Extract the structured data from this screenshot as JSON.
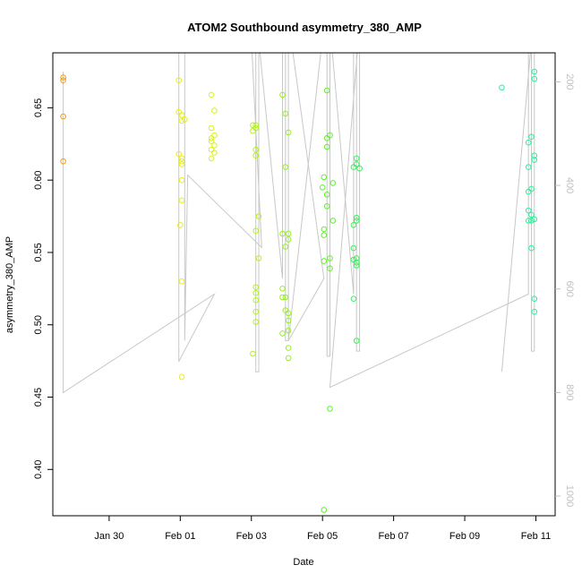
{
  "chart_data": {
    "type": "scatter",
    "title": "ATOM2 Southbound asymmetry_380_AMP",
    "xlabel": "Date",
    "ylabel": "asymmetry_380_AMP",
    "xlim": [
      "2024-01-28T10:00",
      "2024-02-11T13:00"
    ],
    "ylim": [
      0.368,
      0.688
    ],
    "x_ticks": [
      {
        "date": "2024-01-30T00:00",
        "label": "Jan 30"
      },
      {
        "date": "2024-02-01T00:00",
        "label": "Feb 01"
      },
      {
        "date": "2024-02-03T00:00",
        "label": "Feb 03"
      },
      {
        "date": "2024-02-05T00:00",
        "label": "Feb 05"
      },
      {
        "date": "2024-02-07T00:00",
        "label": "Feb 07"
      },
      {
        "date": "2024-02-09T00:00",
        "label": "Feb 09"
      },
      {
        "date": "2024-02-11T00:00",
        "label": "Feb 11"
      }
    ],
    "y_ticks": [
      0.4,
      0.45,
      0.5,
      0.55,
      0.6,
      0.65
    ],
    "y2_ticks": [
      200,
      400,
      600,
      800,
      1000
    ],
    "y2lim": [
      1038,
      144
    ],
    "grid": false,
    "legend": "none",
    "colors": {
      "series_line": "#c8c8c8",
      "right_axis": "#c0c0c0",
      "box": "#000000"
    },
    "series": [
      {
        "color": "#f29a1a",
        "points": [
          [
            "2024-01-28T17:00",
            0.671
          ],
          [
            "2024-01-28T17:00",
            0.669
          ],
          [
            "2024-01-28T17:00",
            0.644
          ],
          [
            "2024-01-28T17:00",
            0.613
          ]
        ]
      },
      {
        "color": "#e8ee1a",
        "points": [
          [
            "2024-01-31T23:00",
            0.669
          ],
          [
            "2024-01-31T23:00",
            0.647
          ],
          [
            "2024-01-31T23:00",
            0.618
          ],
          [
            "2024-02-01T01:00",
            0.645
          ],
          [
            "2024-02-01T01:00",
            0.641
          ],
          [
            "2024-02-01T03:00",
            0.642
          ],
          [
            "2024-02-01T01:00",
            0.615
          ],
          [
            "2024-02-01T01:00",
            0.613
          ],
          [
            "2024-02-01T01:00",
            0.611
          ],
          [
            "2024-02-01T01:00",
            0.6
          ],
          [
            "2024-02-01T01:00",
            0.586
          ],
          [
            "2024-02-01T00:00",
            0.569
          ],
          [
            "2024-02-01T01:00",
            0.53
          ],
          [
            "2024-02-01T01:00",
            0.464
          ]
        ]
      },
      {
        "color": "#d7f21e",
        "points": [
          [
            "2024-02-01T21:00",
            0.659
          ],
          [
            "2024-02-01T23:00",
            0.648
          ],
          [
            "2024-02-01T21:00",
            0.636
          ],
          [
            "2024-02-01T21:00",
            0.629
          ],
          [
            "2024-02-01T23:00",
            0.631
          ],
          [
            "2024-02-01T21:00",
            0.627
          ],
          [
            "2024-02-01T23:00",
            0.624
          ],
          [
            "2024-02-01T21:00",
            0.621
          ],
          [
            "2024-02-01T23:00",
            0.619
          ],
          [
            "2024-02-01T21:00",
            0.615
          ]
        ]
      },
      {
        "color": "#b4f21e",
        "points": [
          [
            "2024-02-03T01:00",
            0.638
          ],
          [
            "2024-02-03T03:00",
            0.638
          ],
          [
            "2024-02-03T03:00",
            0.636
          ],
          [
            "2024-02-03T01:00",
            0.634
          ],
          [
            "2024-02-03T03:00",
            0.621
          ],
          [
            "2024-02-03T03:00",
            0.617
          ],
          [
            "2024-02-03T05:00",
            0.575
          ],
          [
            "2024-02-03T03:00",
            0.565
          ],
          [
            "2024-02-03T05:00",
            0.546
          ],
          [
            "2024-02-03T03:00",
            0.526
          ],
          [
            "2024-02-03T03:00",
            0.522
          ],
          [
            "2024-02-03T03:00",
            0.517
          ],
          [
            "2024-02-03T03:00",
            0.509
          ],
          [
            "2024-02-03T03:00",
            0.502
          ],
          [
            "2024-02-03T01:00",
            0.48
          ]
        ]
      },
      {
        "color": "#96f01e",
        "points": [
          [
            "2024-02-03T21:00",
            0.659
          ],
          [
            "2024-02-03T23:00",
            0.646
          ],
          [
            "2024-02-04T01:00",
            0.633
          ],
          [
            "2024-02-03T23:00",
            0.609
          ],
          [
            "2024-02-03T21:00",
            0.563
          ],
          [
            "2024-02-04T01:00",
            0.563
          ],
          [
            "2024-02-04T01:00",
            0.559
          ],
          [
            "2024-02-03T23:00",
            0.554
          ],
          [
            "2024-02-03T21:00",
            0.525
          ],
          [
            "2024-02-03T23:00",
            0.519
          ],
          [
            "2024-02-03T21:00",
            0.519
          ],
          [
            "2024-02-03T23:00",
            0.51
          ],
          [
            "2024-02-04T01:00",
            0.508
          ],
          [
            "2024-02-04T01:00",
            0.503
          ],
          [
            "2024-02-04T01:00",
            0.496
          ],
          [
            "2024-02-03T21:00",
            0.494
          ],
          [
            "2024-02-04T01:00",
            0.484
          ],
          [
            "2024-02-04T01:00",
            0.477
          ]
        ]
      },
      {
        "color": "#5ef02a",
        "points": [
          [
            "2024-02-05T03:00",
            0.662
          ],
          [
            "2024-02-05T05:00",
            0.631
          ],
          [
            "2024-02-05T03:00",
            0.629
          ],
          [
            "2024-02-05T03:00",
            0.623
          ],
          [
            "2024-02-05T01:00",
            0.602
          ],
          [
            "2024-02-05T07:00",
            0.598
          ],
          [
            "2024-02-05T00:00",
            0.595
          ],
          [
            "2024-02-05T03:00",
            0.59
          ],
          [
            "2024-02-05T03:00",
            0.582
          ],
          [
            "2024-02-05T07:00",
            0.572
          ],
          [
            "2024-02-05T01:00",
            0.566
          ],
          [
            "2024-02-05T01:00",
            0.562
          ],
          [
            "2024-02-05T05:00",
            0.546
          ],
          [
            "2024-02-05T01:00",
            0.544
          ],
          [
            "2024-02-05T05:00",
            0.539
          ],
          [
            "2024-02-05T05:00",
            0.442
          ],
          [
            "2024-02-05T01:00",
            0.372
          ]
        ]
      },
      {
        "color": "#3cf05a",
        "points": [
          [
            "2024-02-05T23:00",
            0.615
          ],
          [
            "2024-02-05T23:00",
            0.611
          ],
          [
            "2024-02-05T21:00",
            0.609
          ],
          [
            "2024-02-06T01:00",
            0.608
          ],
          [
            "2024-02-05T23:00",
            0.574
          ],
          [
            "2024-02-05T23:00",
            0.572
          ],
          [
            "2024-02-05T21:00",
            0.569
          ],
          [
            "2024-02-05T21:00",
            0.553
          ],
          [
            "2024-02-05T23:00",
            0.546
          ],
          [
            "2024-02-05T21:00",
            0.545
          ],
          [
            "2024-02-05T23:00",
            0.543
          ],
          [
            "2024-02-05T23:00",
            0.541
          ],
          [
            "2024-02-05T21:00",
            0.518
          ],
          [
            "2024-02-05T23:00",
            0.489
          ]
        ]
      },
      {
        "color": "#28f09a",
        "points": [
          [
            "2024-02-10T01:00",
            0.664
          ],
          [
            "2024-02-10T23:00",
            0.675
          ],
          [
            "2024-02-10T23:00",
            0.67
          ],
          [
            "2024-02-10T21:00",
            0.63
          ],
          [
            "2024-02-10T19:00",
            0.626
          ],
          [
            "2024-02-10T23:00",
            0.617
          ],
          [
            "2024-02-10T23:00",
            0.614
          ],
          [
            "2024-02-10T19:00",
            0.609
          ],
          [
            "2024-02-10T21:00",
            0.594
          ],
          [
            "2024-02-10T19:00",
            0.592
          ],
          [
            "2024-02-10T19:00",
            0.579
          ],
          [
            "2024-02-10T21:00",
            0.576
          ],
          [
            "2024-02-10T19:00",
            0.572
          ],
          [
            "2024-02-10T21:00",
            0.572
          ],
          [
            "2024-02-10T23:00",
            0.573
          ],
          [
            "2024-02-10T21:00",
            0.553
          ],
          [
            "2024-02-10T23:00",
            0.518
          ],
          [
            "2024-02-10T23:00",
            0.509
          ]
        ]
      }
    ],
    "line": [
      [
        "2024-01-28T17:00",
        180
      ],
      [
        "2024-01-28T17:00",
        800
      ],
      [
        "2024-02-01T23:00",
        610
      ],
      [
        "2024-01-31T23:00",
        740
      ],
      [
        "2024-01-31T23:00",
        50
      ],
      [
        "2024-02-01T03:00",
        50
      ],
      [
        "2024-02-01T03:00",
        700
      ],
      [
        "2024-02-01T05:00",
        380
      ],
      [
        "2024-02-03T07:00",
        520
      ],
      [
        "2024-02-03T00:00",
        120
      ],
      [
        "2024-02-03T03:00",
        120
      ],
      [
        "2024-02-03T03:00",
        760
      ],
      [
        "2024-02-03T05:00",
        760
      ],
      [
        "2024-02-03T05:00",
        120
      ],
      [
        "2024-02-03T21:00",
        580
      ],
      [
        "2024-02-03T21:00",
        80
      ],
      [
        "2024-02-03T23:00",
        80
      ],
      [
        "2024-02-03T23:00",
        700
      ],
      [
        "2024-02-04T01:00",
        700
      ],
      [
        "2024-02-04T01:00",
        80
      ],
      [
        "2024-02-05T01:00",
        580
      ],
      [
        "2024-02-04T01:00",
        700
      ],
      [
        "2024-02-05T01:00",
        90
      ],
      [
        "2024-02-05T03:00",
        90
      ],
      [
        "2024-02-05T03:00",
        730
      ],
      [
        "2024-02-05T05:00",
        730
      ],
      [
        "2024-02-05T05:00",
        90
      ],
      [
        "2024-02-05T21:00",
        610
      ],
      [
        "2024-02-05T21:00",
        90
      ],
      [
        "2024-02-05T23:00",
        90
      ],
      [
        "2024-02-05T23:00",
        720
      ],
      [
        "2024-02-06T01:00",
        720
      ],
      [
        "2024-02-06T01:00",
        90
      ],
      [
        "2024-02-05T05:00",
        790
      ],
      [
        "2024-02-10T19:00",
        610
      ],
      [
        "2024-02-10T19:00",
        60
      ],
      [
        "2024-02-10T21:00",
        60
      ],
      [
        "2024-02-10T21:00",
        720
      ],
      [
        "2024-02-10T23:00",
        720
      ],
      [
        "2024-02-10T23:00",
        60
      ],
      [
        "2024-02-10T01:00",
        760
      ]
    ]
  }
}
